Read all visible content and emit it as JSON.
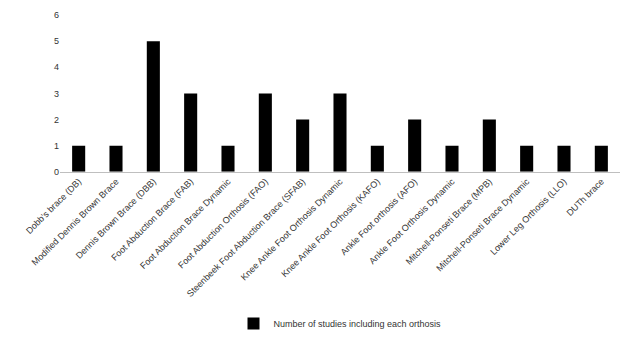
{
  "chart_data": {
    "type": "bar",
    "categories": [
      "Dobb's brace (DB)",
      "Modified Dennis Brown Brace",
      "Dennis Brown Brace (DBB)",
      "Foot Abduction Brace (FAB)",
      "Foot Abduction Brace Dynamic",
      "Foot Abduction Orthosis (FAO)",
      "Steenbeek Foot Abduction Brace (SFAB)",
      "Knee Ankle Foot Orthosis Dynamic",
      "Knee Ankle Foot Orthosis (KAFO)",
      "Ankle Foot orthosis (AFO)",
      "Ankle Foot Orthosis Dynamic",
      "Mitchell-Ponseti Brace (MPB)",
      "Mitchell-Ponseti Brace Dynamic",
      "Lower Leg Orthosis (LLO)",
      "DUTh brace"
    ],
    "series": [
      {
        "name": "Number of studies including each orthosis",
        "color": "#000000",
        "values": [
          1,
          1,
          5,
          3,
          1,
          3,
          2,
          3,
          1,
          2,
          1,
          2,
          1,
          1,
          1
        ]
      }
    ],
    "ylim": [
      0,
      6
    ],
    "yticks": [
      0,
      1,
      2,
      3,
      4,
      5,
      6
    ],
    "grid": false,
    "legend": "bottom"
  }
}
